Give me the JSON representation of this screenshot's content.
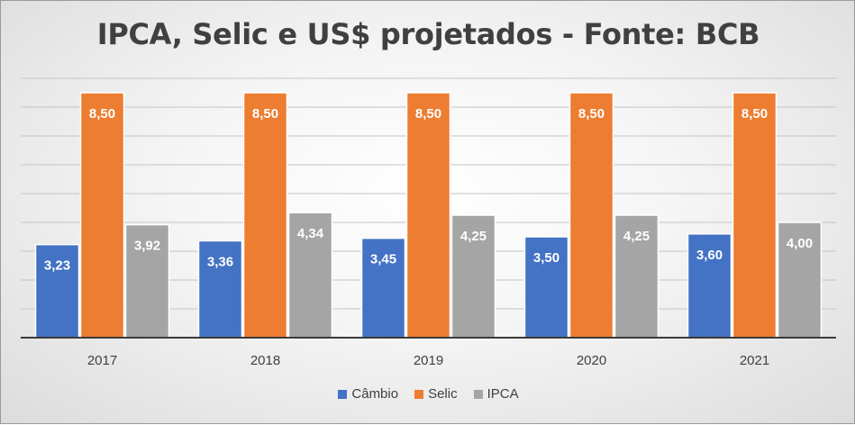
{
  "chart_data": {
    "type": "bar",
    "title": "IPCA, Selic e US$ projetados - Fonte: BCB",
    "categories": [
      "2017",
      "2018",
      "2019",
      "2020",
      "2021"
    ],
    "series": [
      {
        "name": "Câmbio",
        "values": [
          3.23,
          3.36,
          3.45,
          3.5,
          3.6
        ],
        "labels": [
          "3,23",
          "3,36",
          "3,45",
          "3,50",
          "3,60"
        ],
        "color": "#4472C4"
      },
      {
        "name": "Selic",
        "values": [
          8.5,
          8.5,
          8.5,
          8.5,
          8.5
        ],
        "labels": [
          "8,50",
          "8,50",
          "8,50",
          "8,50",
          "8,50"
        ],
        "color": "#ED7D31"
      },
      {
        "name": "IPCA",
        "values": [
          3.92,
          4.34,
          4.25,
          4.25,
          4.0
        ],
        "labels": [
          "3,92",
          "4,34",
          "4,25",
          "4,25",
          "4,00"
        ],
        "color": "#A5A5A5"
      }
    ],
    "xlabel": "",
    "ylabel": "",
    "ylim": [
      0,
      9
    ],
    "grid": true,
    "legend_position": "bottom"
  }
}
